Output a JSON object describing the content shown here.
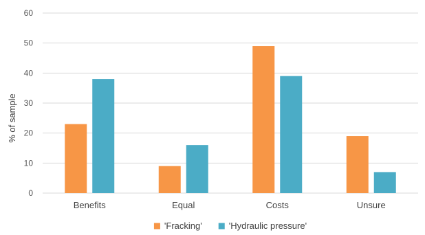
{
  "chart_data": {
    "type": "bar",
    "categories": [
      "Benefits",
      "Equal",
      "Costs",
      "Unsure"
    ],
    "series": [
      {
        "name": "'Fracking'",
        "color": "#F79646",
        "values": [
          23,
          9,
          49,
          19
        ]
      },
      {
        "name": "'Hydraulic pressure'",
        "color": "#4BACC6",
        "values": [
          38,
          16,
          39,
          7
        ]
      }
    ],
    "ylabel": "% of sample",
    "ylim": [
      0,
      60
    ],
    "yticks": [
      0,
      10,
      20,
      30,
      40,
      50,
      60
    ],
    "grid": true,
    "legend": "bottom"
  }
}
